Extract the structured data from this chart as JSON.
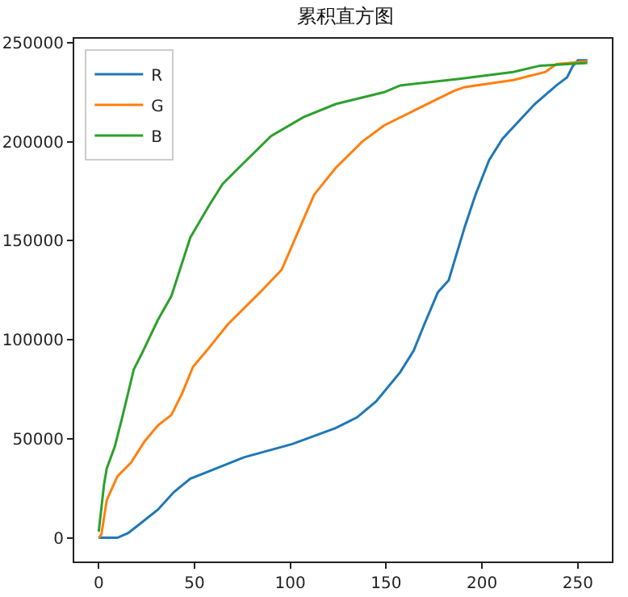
{
  "chart_data": {
    "type": "line",
    "title": "累积直方图",
    "xlim": [
      -12.75,
      267.75
    ],
    "xticks": [
      0,
      50,
      100,
      150,
      200,
      250
    ],
    "ylim": [
      -12000,
      252000
    ],
    "yticks": [
      0,
      50000,
      100000,
      150000,
      200000,
      250000
    ],
    "grid": false,
    "legend": "top left",
    "marker": "none",
    "line_style": "solid",
    "series": [
      {
        "name": "R",
        "color": "#1f77b4",
        "x": [
          0,
          9.8,
          15.4,
          19.7,
          30.9,
          39.3,
          47.8,
          61.8,
          75.8,
          101,
          123.6,
          134.8,
          144.7,
          157.3,
          164.3,
          169.9,
          177,
          182.6,
          191,
          196.6,
          203.7,
          210.7,
          227.5,
          238.8,
          244.4,
          247.2,
          250,
          255
        ],
        "values": [
          0,
          0,
          2400,
          5600,
          14200,
          23100,
          29800,
          35200,
          40600,
          47300,
          55400,
          60800,
          68800,
          83600,
          94400,
          107800,
          124000,
          130000,
          157000,
          173200,
          190700,
          201500,
          219000,
          228400,
          232500,
          237900,
          241100,
          241100
        ]
      },
      {
        "name": "G",
        "color": "#ff7f0e",
        "x": [
          0,
          1.4,
          4.2,
          9.8,
          16.9,
          23.9,
          30.9,
          37.9,
          43.5,
          49.2,
          56.2,
          67.4,
          84.3,
          95.5,
          112.4,
          123.6,
          137.6,
          148.9,
          168.5,
          185.4,
          191,
          216.3,
          233.1,
          238.8,
          255
        ],
        "values": [
          0,
          1600,
          19000,
          31000,
          38000,
          48600,
          56700,
          62000,
          72800,
          86300,
          94300,
          107800,
          124000,
          135400,
          173200,
          186700,
          200100,
          208200,
          217600,
          225700,
          227600,
          231100,
          235200,
          239200,
          240600
        ]
      },
      {
        "name": "B",
        "color": "#2ca02c",
        "x": [
          0,
          2.8,
          4.2,
          8.4,
          12.6,
          18.3,
          22.5,
          30.9,
          37.9,
          47.8,
          57.6,
          64.6,
          73,
          89.9,
          106.7,
          123.6,
          148.9,
          157.3,
          188.2,
          216.3,
          230.3,
          255
        ],
        "values": [
          3000,
          27000,
          35000,
          46000,
          62000,
          85000,
          93000,
          110000,
          122000,
          151600,
          167800,
          178600,
          186700,
          202800,
          212300,
          219000,
          225000,
          228400,
          231700,
          235200,
          238400,
          239800
        ]
      }
    ]
  }
}
